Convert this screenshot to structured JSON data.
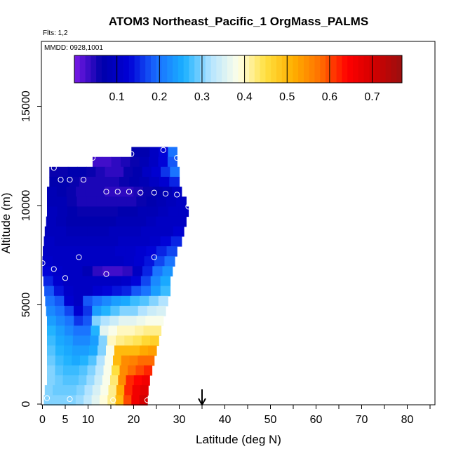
{
  "chart_data": {
    "type": "heatmap",
    "title": "ATOM3 Northeast_Pacific_1 OrgMass_PALMS",
    "subtitle_flights": "Flts: 1,2",
    "subtitle_dates": "MMDD: 0928,1001",
    "xlabel": "Latitude (deg N)",
    "ylabel": "Altitude (m)",
    "xlim": [
      0,
      85
    ],
    "ylim": [
      0,
      17500
    ],
    "x_ticks": [
      0,
      5,
      10,
      20,
      30,
      40,
      50,
      60,
      70,
      80
    ],
    "y_ticks": [
      0,
      5000,
      10000,
      15000
    ],
    "colorbar": {
      "ticks": [
        0.1,
        0.2,
        0.3,
        0.4,
        0.5,
        0.6,
        0.7
      ],
      "range": [
        0.0,
        0.77
      ],
      "colors": [
        "#7a1ae6",
        "#0000aa",
        "#0000d6",
        "#1a6cff",
        "#1ab0ff",
        "#b4e4ff",
        "#ffffe8",
        "#ffe040",
        "#ffb000",
        "#ff7000",
        "#ff0000",
        "#d00000",
        "#9a1010"
      ]
    },
    "arrow_latitude": 35,
    "field_rows": [
      {
        "y": 12700,
        "x0": 19.5,
        "x1": 29.5,
        "v": [
          0.07,
          0.07,
          0.1,
          0.13,
          0.2
        ]
      },
      {
        "y": 12200,
        "x0": 11,
        "x1": 29.5,
        "v": [
          0.03,
          0.03,
          0.04,
          0.05,
          0.06,
          0.08,
          0.1,
          0.13,
          0.18
        ]
      },
      {
        "y": 11700,
        "x0": 1.5,
        "x1": 30,
        "v": [
          0.06,
          0.06,
          0.07,
          0.07,
          0.06,
          0.05,
          0.04,
          0.04,
          0.06,
          0.07,
          0.1,
          0.12,
          0.16,
          0.2
        ]
      },
      {
        "y": 11200,
        "x0": 1.5,
        "x1": 30,
        "v": [
          0.07,
          0.07,
          0.06,
          0.05,
          0.05,
          0.05,
          0.05,
          0.06,
          0.07,
          0.08,
          0.1,
          0.12,
          0.15
        ]
      },
      {
        "y": 10700,
        "x0": 1,
        "x1": 30.5,
        "v": [
          0.08,
          0.07,
          0.06,
          0.05,
          0.05,
          0.05,
          0.04,
          0.04,
          0.04,
          0.05,
          0.06,
          0.07,
          0.08,
          0.1
        ]
      },
      {
        "y": 10200,
        "x0": 1,
        "x1": 31.5,
        "v": [
          0.08,
          0.08,
          0.06,
          0.05,
          0.05,
          0.05,
          0.05,
          0.05,
          0.05,
          0.06,
          0.07,
          0.08,
          0.09,
          0.1
        ]
      },
      {
        "y": 9700,
        "x0": 1,
        "x1": 32,
        "v": [
          0.09,
          0.08,
          0.07,
          0.06,
          0.06,
          0.06,
          0.06,
          0.07,
          0.07,
          0.08,
          0.08,
          0.09,
          0.1,
          0.1
        ]
      },
      {
        "y": 9200,
        "x0": 0.8,
        "x1": 31.5,
        "v": [
          0.09,
          0.08,
          0.07,
          0.07,
          0.07,
          0.07,
          0.07,
          0.08,
          0.08,
          0.08,
          0.09,
          0.1,
          0.1,
          0.1
        ]
      },
      {
        "y": 8700,
        "x0": 0.5,
        "x1": 31,
        "v": [
          0.09,
          0.09,
          0.08,
          0.08,
          0.08,
          0.08,
          0.09,
          0.09,
          0.09,
          0.1,
          0.1,
          0.1,
          0.12
        ]
      },
      {
        "y": 8200,
        "x0": 0.3,
        "x1": 30.5,
        "v": [
          0.1,
          0.09,
          0.09,
          0.09,
          0.09,
          0.09,
          0.09,
          0.1,
          0.1,
          0.1,
          0.11,
          0.13,
          0.15
        ]
      },
      {
        "y": 7700,
        "x0": 0.1,
        "x1": 29.5,
        "v": [
          0.1,
          0.1,
          0.1,
          0.1,
          0.1,
          0.1,
          0.1,
          0.11,
          0.11,
          0.12,
          0.13,
          0.15,
          0.17
        ]
      },
      {
        "y": 7200,
        "x0": 0,
        "x1": 29,
        "v": [
          0.11,
          0.1,
          0.1,
          0.1,
          0.1,
          0.1,
          0.1,
          0.1,
          0.11,
          0.12,
          0.14,
          0.17,
          0.2
        ]
      },
      {
        "y": 6700,
        "x0": 0,
        "x1": 28.5,
        "v": [
          0.13,
          0.11,
          0.1,
          0.1,
          0.08,
          0.04,
          0.03,
          0.03,
          0.04,
          0.1,
          0.15,
          0.2,
          0.23
        ]
      },
      {
        "y": 6200,
        "x0": 0.2,
        "x1": 28,
        "v": [
          0.15,
          0.12,
          0.1,
          0.1,
          0.1,
          0.1,
          0.1,
          0.1,
          0.11,
          0.13,
          0.17,
          0.22,
          0.25
        ]
      },
      {
        "y": 5700,
        "x0": 0.4,
        "x1": 28,
        "v": [
          0.18,
          0.14,
          0.11,
          0.1,
          0.1,
          0.12,
          0.13,
          0.14,
          0.15,
          0.18,
          0.2,
          0.24,
          0.27
        ]
      },
      {
        "y": 5200,
        "x0": 0.6,
        "x1": 27.5,
        "v": [
          0.2,
          0.18,
          0.12,
          0.1,
          0.18,
          0.2,
          0.22,
          0.24,
          0.25,
          0.27,
          0.28,
          0.3,
          0.32
        ]
      },
      {
        "y": 4700,
        "x0": 0.8,
        "x1": 27,
        "v": [
          0.22,
          0.2,
          0.17,
          0.12,
          0.16,
          0.24,
          0.26,
          0.28,
          0.3,
          0.3,
          0.32,
          0.34,
          0.35
        ]
      },
      {
        "y": 4200,
        "x0": 1,
        "x1": 26.5,
        "v": [
          0.24,
          0.22,
          0.2,
          0.16,
          0.18,
          0.3,
          0.32,
          0.34,
          0.36,
          0.36,
          0.37,
          0.38,
          0.38
        ]
      },
      {
        "y": 3700,
        "x0": 1,
        "x1": 26,
        "v": [
          0.26,
          0.24,
          0.22,
          0.2,
          0.2,
          0.26,
          0.36,
          0.38,
          0.4,
          0.4,
          0.41,
          0.42,
          0.42
        ]
      },
      {
        "y": 3200,
        "x0": 1,
        "x1": 25.5,
        "v": [
          0.27,
          0.25,
          0.24,
          0.22,
          0.22,
          0.24,
          0.3,
          0.4,
          0.42,
          0.43,
          0.44,
          0.46,
          0.47
        ]
      },
      {
        "y": 2700,
        "x0": 1,
        "x1": 25,
        "v": [
          0.28,
          0.26,
          0.25,
          0.24,
          0.24,
          0.25,
          0.3,
          0.38,
          0.5,
          0.5,
          0.5,
          0.52,
          0.53
        ]
      },
      {
        "y": 2200,
        "x0": 1,
        "x1": 24.5,
        "v": [
          0.29,
          0.27,
          0.26,
          0.25,
          0.26,
          0.28,
          0.32,
          0.38,
          0.5,
          0.55,
          0.56,
          0.58,
          0.58
        ]
      },
      {
        "y": 1700,
        "x0": 1,
        "x1": 24,
        "v": [
          0.3,
          0.28,
          0.27,
          0.27,
          0.28,
          0.3,
          0.33,
          0.38,
          0.45,
          0.55,
          0.58,
          0.6,
          0.62
        ]
      },
      {
        "y": 1200,
        "x0": 1,
        "x1": 23.5,
        "v": [
          0.3,
          0.29,
          0.28,
          0.28,
          0.29,
          0.31,
          0.34,
          0.38,
          0.43,
          0.55,
          0.62,
          0.64,
          0.66
        ]
      },
      {
        "y": 700,
        "x0": 0.5,
        "x1": 23.2,
        "v": [
          0.3,
          0.29,
          0.29,
          0.29,
          0.3,
          0.32,
          0.35,
          0.38,
          0.42,
          0.52,
          0.62,
          0.66,
          0.68
        ]
      },
      {
        "y": 200,
        "x0": 0.3,
        "x1": 23,
        "v": [
          0.3,
          0.3,
          0.3,
          0.3,
          0.31,
          0.33,
          0.36,
          0.39,
          0.42,
          0.5,
          0.6,
          0.66,
          0.7
        ]
      }
    ],
    "sample_points": [
      {
        "x": 2.5,
        "y": 11900
      },
      {
        "x": 4,
        "y": 11300
      },
      {
        "x": 6,
        "y": 11300
      },
      {
        "x": 9,
        "y": 11300
      },
      {
        "x": 11,
        "y": 12400
      },
      {
        "x": 19.5,
        "y": 12600
      },
      {
        "x": 26.5,
        "y": 12800
      },
      {
        "x": 29.5,
        "y": 12400
      },
      {
        "x": 14,
        "y": 10700
      },
      {
        "x": 16.5,
        "y": 10700
      },
      {
        "x": 19,
        "y": 10700
      },
      {
        "x": 21.5,
        "y": 10650
      },
      {
        "x": 24.5,
        "y": 10650
      },
      {
        "x": 27,
        "y": 10600
      },
      {
        "x": 29.5,
        "y": 10550
      },
      {
        "x": 32,
        "y": 9950
      },
      {
        "x": 0,
        "y": 7100
      },
      {
        "x": 2.5,
        "y": 6800
      },
      {
        "x": 5,
        "y": 6350
      },
      {
        "x": 8,
        "y": 7400
      },
      {
        "x": 14,
        "y": 6550
      },
      {
        "x": 24.5,
        "y": 7400
      },
      {
        "x": 1,
        "y": 300
      },
      {
        "x": 6,
        "y": 250
      },
      {
        "x": 15.5,
        "y": 200
      },
      {
        "x": 23,
        "y": 200
      }
    ]
  }
}
